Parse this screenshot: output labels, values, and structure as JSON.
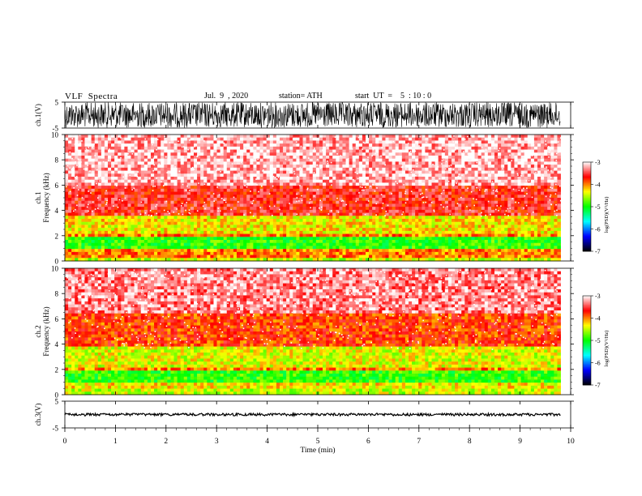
{
  "header": {
    "title": "VLF  Spectra",
    "date": "Jul.  9  , 2020",
    "station": "station= ATH",
    "start": "start  UT  =    5  : 10 : 0"
  },
  "chart_data": [
    {
      "type": "line",
      "name": "waveform-ch1",
      "ylabel": "ch.1(V)",
      "ylim": [
        -5,
        5
      ],
      "yticks": [
        "5",
        "-5"
      ],
      "xlim": [
        0,
        10
      ],
      "note_values": "dense noise waveform filling roughly -5..5 V"
    },
    {
      "type": "heatmap",
      "name": "spectrogram-ch1",
      "ylabel": [
        "ch.1",
        "Frequency  (kHz)"
      ],
      "ylim": [
        0,
        10
      ],
      "yticks": [
        "0",
        "2",
        "4",
        "6",
        "8",
        "10"
      ],
      "xlim": [
        0,
        9.8
      ],
      "bands_khz": [
        {
          "from": 0.0,
          "to": 0.3,
          "level": -4.5
        },
        {
          "from": 0.3,
          "to": 1.0,
          "level": -4.0
        },
        {
          "from": 1.0,
          "to": 1.8,
          "level": -4.9
        },
        {
          "from": 1.8,
          "to": 2.2,
          "level": -4.0
        },
        {
          "from": 2.2,
          "to": 3.6,
          "level": -4.3
        },
        {
          "from": 3.6,
          "to": 6.0,
          "level": -3.6
        },
        {
          "from": 6.0,
          "to": 10.0,
          "level": -3.2
        }
      ]
    },
    {
      "type": "heatmap",
      "name": "spectrogram-ch2",
      "ylabel": [
        "ch.2",
        "Frequency  (kHz)"
      ],
      "ylim": [
        0,
        10
      ],
      "yticks": [
        "0",
        "2",
        "4",
        "6",
        "8",
        "10"
      ],
      "xlim": [
        0,
        9.8
      ],
      "bands_khz": [
        {
          "from": 0.0,
          "to": 0.4,
          "level": -4.5
        },
        {
          "from": 0.4,
          "to": 1.0,
          "level": -4.3
        },
        {
          "from": 1.0,
          "to": 1.8,
          "level": -4.9
        },
        {
          "from": 1.8,
          "to": 2.2,
          "level": -4.0
        },
        {
          "from": 2.2,
          "to": 3.7,
          "level": -4.4
        },
        {
          "from": 3.7,
          "to": 6.5,
          "level": -3.8
        },
        {
          "from": 6.5,
          "to": 10.0,
          "level": -3.3
        }
      ]
    },
    {
      "type": "line",
      "name": "waveform-ch3",
      "ylabel": "ch.3(V)",
      "ylim": [
        -5,
        5
      ],
      "yticks": [
        "5",
        "-5"
      ],
      "xlim": [
        0,
        10
      ],
      "note_values": "near-constant trace at about 0 V"
    }
  ],
  "xaxis": {
    "label": "Time  (min)",
    "ticks": [
      "0",
      "1",
      "2",
      "3",
      "4",
      "5",
      "6",
      "7",
      "8",
      "9",
      "10"
    ]
  },
  "colorbar": {
    "label": "log(PSD)(V²/Hz)",
    "ticks": [
      "-3",
      "-4",
      "-5",
      "-6",
      "-7"
    ],
    "range": [
      -7,
      -3
    ],
    "colors": [
      "#000000",
      "#0000ff",
      "#00ffff",
      "#00ff00",
      "#ffff00",
      "#ff0000",
      "#ffffff"
    ]
  }
}
